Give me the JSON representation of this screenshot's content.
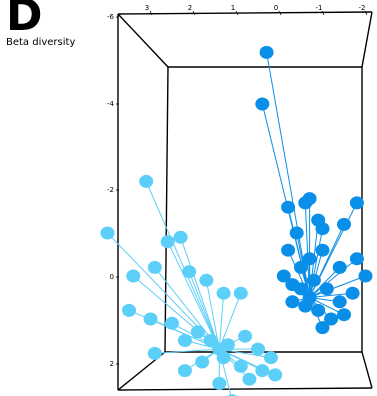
{
  "panel": {
    "letter": "D",
    "subtitle": "Beta diversity"
  },
  "chart_data": {
    "type": "scatter",
    "projection": "3d-pcoa-spider",
    "title": "",
    "vertical_axis": {
      "ticks": [
        "-6",
        "-4",
        "-2",
        "0",
        "2"
      ]
    },
    "top_axis": {
      "ticks": [
        "3",
        "2",
        "1",
        "0",
        "-1",
        "-2"
      ]
    },
    "series": [
      {
        "color": "#0a8fe8",
        "centroid": {
          "x": -1.2,
          "y": 0.5
        },
        "points": [
          {
            "x": -0.2,
            "y": -5.2
          },
          {
            "x": -0.1,
            "y": -4.0
          },
          {
            "x": -1.1,
            "y": -1.7
          },
          {
            "x": -1.2,
            "y": -1.8
          },
          {
            "x": -1.4,
            "y": -1.3
          },
          {
            "x": -0.7,
            "y": -1.6
          },
          {
            "x": -1.5,
            "y": -1.1
          },
          {
            "x": -2.3,
            "y": -1.7
          },
          {
            "x": -2.0,
            "y": -1.2
          },
          {
            "x": -0.9,
            "y": -1.0
          },
          {
            "x": -1.5,
            "y": -0.6
          },
          {
            "x": -1.9,
            "y": -0.2
          },
          {
            "x": -0.7,
            "y": -0.6
          },
          {
            "x": -1.2,
            "y": -0.4
          },
          {
            "x": -0.6,
            "y": 0.0
          },
          {
            "x": -0.8,
            "y": 0.2
          },
          {
            "x": -1.0,
            "y": 0.3
          },
          {
            "x": -1.3,
            "y": 0.1
          },
          {
            "x": -1.6,
            "y": 0.3
          },
          {
            "x": -1.9,
            "y": 0.6
          },
          {
            "x": -2.2,
            "y": 0.4
          },
          {
            "x": -2.5,
            "y": 0.0
          },
          {
            "x": -2.0,
            "y": 0.9
          },
          {
            "x": -1.7,
            "y": 1.0
          },
          {
            "x": -1.4,
            "y": 0.8
          },
          {
            "x": -1.1,
            "y": 0.7
          },
          {
            "x": -0.8,
            "y": 0.6
          },
          {
            "x": -1.5,
            "y": 1.2
          },
          {
            "x": -2.3,
            "y": -0.4
          },
          {
            "x": -1.0,
            "y": -0.2
          }
        ]
      },
      {
        "color": "#5ccff8",
        "centroid": {
          "x": 0.9,
          "y": 1.7
        },
        "points": [
          {
            "x": 2.6,
            "y": -2.2
          },
          {
            "x": 3.5,
            "y": -1.0
          },
          {
            "x": 2.1,
            "y": -0.8
          },
          {
            "x": 1.8,
            "y": -0.9
          },
          {
            "x": 2.9,
            "y": 0.0
          },
          {
            "x": 2.4,
            "y": -0.2
          },
          {
            "x": 1.6,
            "y": -0.1
          },
          {
            "x": 1.2,
            "y": 0.1
          },
          {
            "x": 0.8,
            "y": 0.4
          },
          {
            "x": 0.4,
            "y": 0.4
          },
          {
            "x": 3.0,
            "y": 0.8
          },
          {
            "x": 2.5,
            "y": 1.0
          },
          {
            "x": 2.0,
            "y": 1.1
          },
          {
            "x": 1.7,
            "y": 1.5
          },
          {
            "x": 2.4,
            "y": 1.8
          },
          {
            "x": 1.4,
            "y": 1.3
          },
          {
            "x": 1.1,
            "y": 1.5
          },
          {
            "x": 0.7,
            "y": 1.6
          },
          {
            "x": 0.3,
            "y": 1.4
          },
          {
            "x": 0.0,
            "y": 1.7
          },
          {
            "x": -0.3,
            "y": 1.9
          },
          {
            "x": -0.4,
            "y": 2.3
          },
          {
            "x": 0.2,
            "y": 2.4
          },
          {
            "x": 0.6,
            "y": 2.9
          },
          {
            "x": 0.9,
            "y": 2.5
          },
          {
            "x": 1.3,
            "y": 2.0
          },
          {
            "x": 1.7,
            "y": 2.2
          },
          {
            "x": 0.4,
            "y": 2.1
          },
          {
            "x": -0.1,
            "y": 2.2
          },
          {
            "x": 0.8,
            "y": 1.9
          }
        ]
      }
    ]
  }
}
